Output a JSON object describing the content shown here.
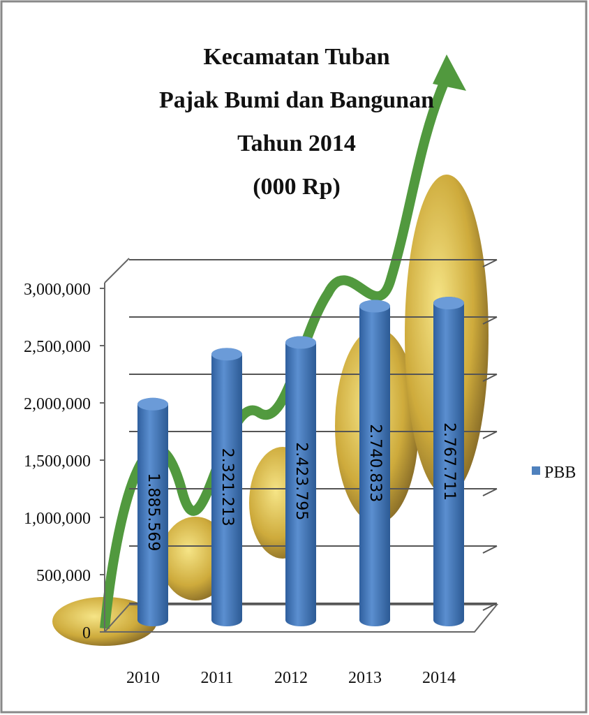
{
  "chart_data": {
    "type": "bar",
    "title_lines": [
      "Kecamatan Tuban",
      "Pajak Bumi dan Bangunan",
      "Tahun 2014",
      "(000 Rp)"
    ],
    "categories": [
      "2010",
      "2011",
      "2012",
      "2013",
      "2014"
    ],
    "series": [
      {
        "name": "PBB",
        "color": "#4f81bd",
        "values": [
          1885569,
          2321213,
          2423795,
          2740833,
          2767711
        ],
        "value_labels": [
          "1.885.569",
          "2.321.213",
          "2.423.795",
          "2.740.833",
          "2.767.711"
        ]
      }
    ],
    "ylim": [
      0,
      3000000
    ],
    "yticks": [
      0,
      {
        "value": 500000,
        "label": "500,000"
      },
      {
        "value": 1000000,
        "label": "1,000,000"
      },
      {
        "value": 1500000,
        "label": "1,500,000"
      },
      {
        "value": 2000000,
        "label": "2,000,000"
      },
      {
        "value": 2500000,
        "label": "2,500,000"
      },
      {
        "value": 3000000,
        "label": "3,000,000"
      }
    ],
    "grid": true,
    "legend": "right"
  }
}
